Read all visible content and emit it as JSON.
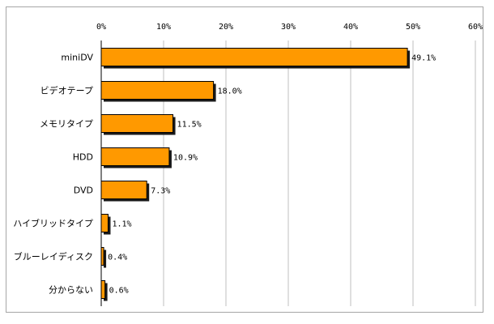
{
  "chart_data": {
    "type": "bar",
    "orientation": "horizontal",
    "title": "",
    "xlabel": "",
    "ylabel": "",
    "xlim": [
      0,
      60
    ],
    "x_ticks": [
      "0%",
      "10%",
      "20%",
      "30%",
      "40%",
      "50%",
      "60%"
    ],
    "x_tick_values": [
      0,
      10,
      20,
      30,
      40,
      50,
      60
    ],
    "grid": "vertical",
    "legend": "none",
    "categories": [
      "miniDV",
      "ビデオテープ",
      "メモリタイプ",
      "HDD",
      "DVD",
      "ハイブリッドタイプ",
      "ブルーレイディスク",
      "分からない"
    ],
    "values": [
      49.1,
      18.0,
      11.5,
      10.9,
      7.3,
      1.1,
      0.4,
      0.6
    ],
    "data_labels": [
      "49.1%",
      "18.0%",
      "11.5%",
      "10.9%",
      "7.3%",
      "1.1%",
      "0.4%",
      "0.6%"
    ],
    "colors": {
      "bar": "#ff9900",
      "bar_border": "#000000",
      "shadow": "#1a1a1a",
      "grid": "#bfbfbf"
    }
  }
}
